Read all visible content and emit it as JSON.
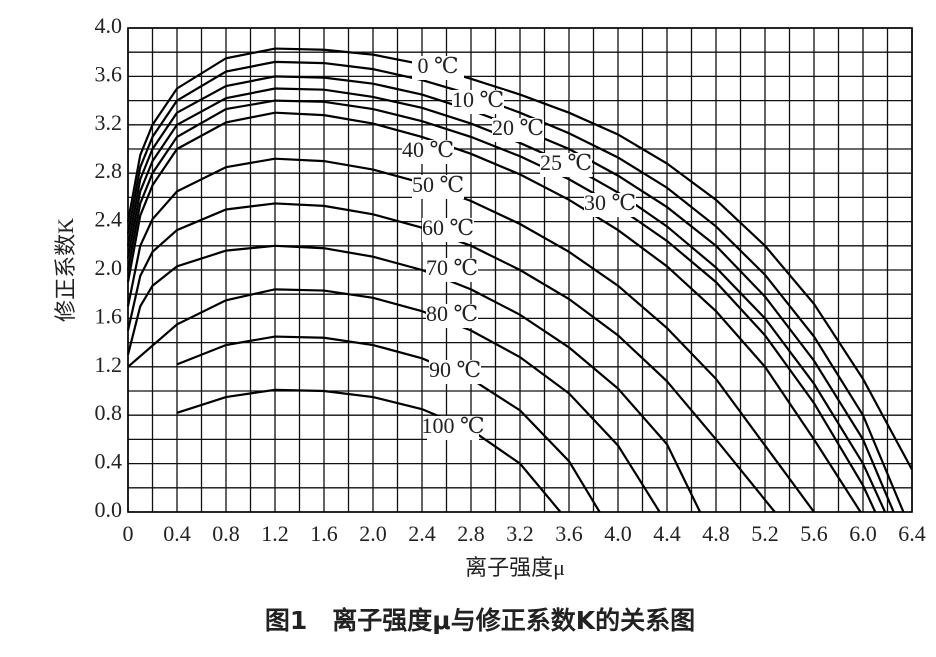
{
  "chart_data": {
    "type": "line",
    "title": "图1　离子强度μ与修正系数K的关系图",
    "x_label": "离子强度μ",
    "y_label": "修正系数K",
    "color": "#000000",
    "grid": true,
    "xlim": [
      0,
      6.4
    ],
    "ylim": [
      0,
      4.0
    ],
    "xticks": [
      0,
      0.4,
      0.8,
      1.2,
      1.6,
      {
        "value": 2,
        "label": "2.0"
      },
      2.4,
      2.8,
      3.2,
      3.6,
      {
        "value": 4,
        "label": "4.0"
      },
      4.4,
      4.8,
      5.2,
      5.6,
      {
        "value": 6,
        "label": "6.0"
      },
      6.4
    ],
    "yticks": [
      {
        "value": 0,
        "label": "0.0"
      },
      0.4,
      0.8,
      1.2,
      1.6,
      {
        "value": 2,
        "label": "2.0"
      },
      2.4,
      2.8,
      3.2,
      3.6,
      {
        "value": 4,
        "label": "4.0"
      }
    ],
    "series": [
      {
        "name": "0 ℃",
        "x": [
          0,
          0.1,
          0.2,
          0.4,
          0.8,
          1.2,
          1.6,
          2.0,
          2.4,
          2.8,
          3.2,
          3.6,
          4.0,
          4.4,
          4.8,
          5.2,
          5.6,
          6.0,
          6.4
        ],
        "values": [
          2.4,
          2.95,
          3.2,
          3.5,
          3.75,
          3.83,
          3.82,
          3.78,
          3.7,
          3.58,
          3.45,
          3.3,
          3.12,
          2.88,
          2.58,
          2.2,
          1.72,
          1.1,
          0.35
        ]
      },
      {
        "name": "10 ℃",
        "x": [
          0,
          0.1,
          0.2,
          0.4,
          0.8,
          1.2,
          1.6,
          2.0,
          2.4,
          2.8,
          3.2,
          3.6,
          4.0,
          4.4,
          4.8,
          5.2,
          5.6,
          6.0,
          6.33
        ],
        "values": [
          2.3,
          2.85,
          3.1,
          3.4,
          3.64,
          3.72,
          3.71,
          3.66,
          3.57,
          3.45,
          3.3,
          3.13,
          2.93,
          2.68,
          2.36,
          1.96,
          1.45,
          0.8,
          0
        ]
      },
      {
        "name": "20 ℃",
        "x": [
          0,
          0.1,
          0.2,
          0.4,
          0.8,
          1.2,
          1.6,
          2.0,
          2.4,
          2.8,
          3.2,
          3.6,
          4.0,
          4.4,
          4.8,
          5.2,
          5.6,
          6.0,
          6.25
        ],
        "values": [
          2.2,
          2.75,
          3.0,
          3.3,
          3.52,
          3.6,
          3.59,
          3.54,
          3.45,
          3.32,
          3.17,
          3.0,
          2.78,
          2.52,
          2.2,
          1.78,
          1.25,
          0.6,
          0
        ]
      },
      {
        "name": "25 ℃",
        "x": [
          0,
          0.1,
          0.2,
          0.4,
          0.8,
          1.2,
          1.6,
          2.0,
          2.4,
          2.8,
          3.2,
          3.6,
          4.0,
          4.4,
          4.8,
          5.2,
          5.6,
          6.0,
          6.18
        ],
        "values": [
          2.1,
          2.65,
          2.9,
          3.2,
          3.42,
          3.5,
          3.49,
          3.43,
          3.34,
          3.21,
          3.05,
          2.87,
          2.64,
          2.36,
          2.02,
          1.6,
          1.06,
          0.4,
          0
        ]
      },
      {
        "name": "30 ℃",
        "x": [
          0,
          0.1,
          0.2,
          0.4,
          0.8,
          1.2,
          1.6,
          2.0,
          2.4,
          2.8,
          3.2,
          3.6,
          4.0,
          4.4,
          4.8,
          5.2,
          5.6,
          6.0,
          6.1
        ],
        "values": [
          2.0,
          2.55,
          2.8,
          3.1,
          3.33,
          3.4,
          3.39,
          3.33,
          3.23,
          3.1,
          2.94,
          2.75,
          2.52,
          2.24,
          1.9,
          1.46,
          0.9,
          0.22,
          0
        ]
      },
      {
        "name": "40 ℃",
        "x": [
          0,
          0.1,
          0.2,
          0.4,
          0.8,
          1.2,
          1.6,
          2.0,
          2.4,
          2.8,
          3.2,
          3.6,
          4.0,
          4.4,
          4.8,
          5.2,
          5.6,
          5.98
        ],
        "values": [
          1.9,
          2.45,
          2.7,
          3.0,
          3.22,
          3.3,
          3.28,
          3.21,
          3.1,
          2.96,
          2.79,
          2.58,
          2.33,
          2.03,
          1.66,
          1.2,
          0.6,
          0
        ]
      },
      {
        "name": "50 ℃",
        "x": [
          0,
          0.1,
          0.2,
          0.4,
          0.8,
          1.2,
          1.6,
          2.0,
          2.4,
          2.8,
          3.2,
          3.6,
          4.0,
          4.4,
          4.8,
          5.2,
          5.6
        ],
        "values": [
          1.7,
          2.2,
          2.42,
          2.65,
          2.85,
          2.92,
          2.9,
          2.83,
          2.72,
          2.57,
          2.38,
          2.15,
          1.87,
          1.52,
          1.1,
          0.55,
          0
        ]
      },
      {
        "name": "60 ℃",
        "x": [
          0,
          0.1,
          0.2,
          0.4,
          0.8,
          1.2,
          1.6,
          2.0,
          2.4,
          2.8,
          3.2,
          3.6,
          4.0,
          4.4,
          4.8,
          5.28
        ],
        "values": [
          1.5,
          1.95,
          2.15,
          2.33,
          2.5,
          2.55,
          2.53,
          2.46,
          2.35,
          2.2,
          2.0,
          1.76,
          1.46,
          1.08,
          0.6,
          0
        ]
      },
      {
        "name": "70 ℃",
        "x": [
          0,
          0.1,
          0.2,
          0.4,
          0.8,
          1.2,
          1.6,
          2.0,
          2.4,
          2.8,
          3.2,
          3.6,
          4.0,
          4.4,
          4.67
        ],
        "values": [
          1.3,
          1.7,
          1.87,
          2.03,
          2.16,
          2.2,
          2.18,
          2.11,
          2.0,
          1.84,
          1.63,
          1.36,
          1.02,
          0.56,
          0
        ]
      },
      {
        "name": "80 ℃",
        "x": [
          0,
          0.4,
          0.8,
          1.2,
          1.6,
          2.0,
          2.4,
          2.8,
          3.2,
          3.6,
          4.0,
          4.34
        ],
        "values": [
          1.2,
          1.55,
          1.75,
          1.84,
          1.83,
          1.77,
          1.66,
          1.5,
          1.28,
          0.98,
          0.55,
          0
        ]
      },
      {
        "name": "90 ℃",
        "x": [
          0.4,
          0.8,
          1.2,
          1.6,
          2.0,
          2.4,
          2.8,
          3.2,
          3.6,
          3.85
        ],
        "values": [
          1.22,
          1.38,
          1.45,
          1.44,
          1.38,
          1.27,
          1.1,
          0.84,
          0.42,
          0
        ]
      },
      {
        "name": "100 ℃",
        "x": [
          0.4,
          0.8,
          1.2,
          1.6,
          2.0,
          2.4,
          2.8,
          3.2,
          3.53
        ],
        "values": [
          0.82,
          0.95,
          1.01,
          1.0,
          0.95,
          0.85,
          0.68,
          0.4,
          0
        ]
      }
    ]
  }
}
